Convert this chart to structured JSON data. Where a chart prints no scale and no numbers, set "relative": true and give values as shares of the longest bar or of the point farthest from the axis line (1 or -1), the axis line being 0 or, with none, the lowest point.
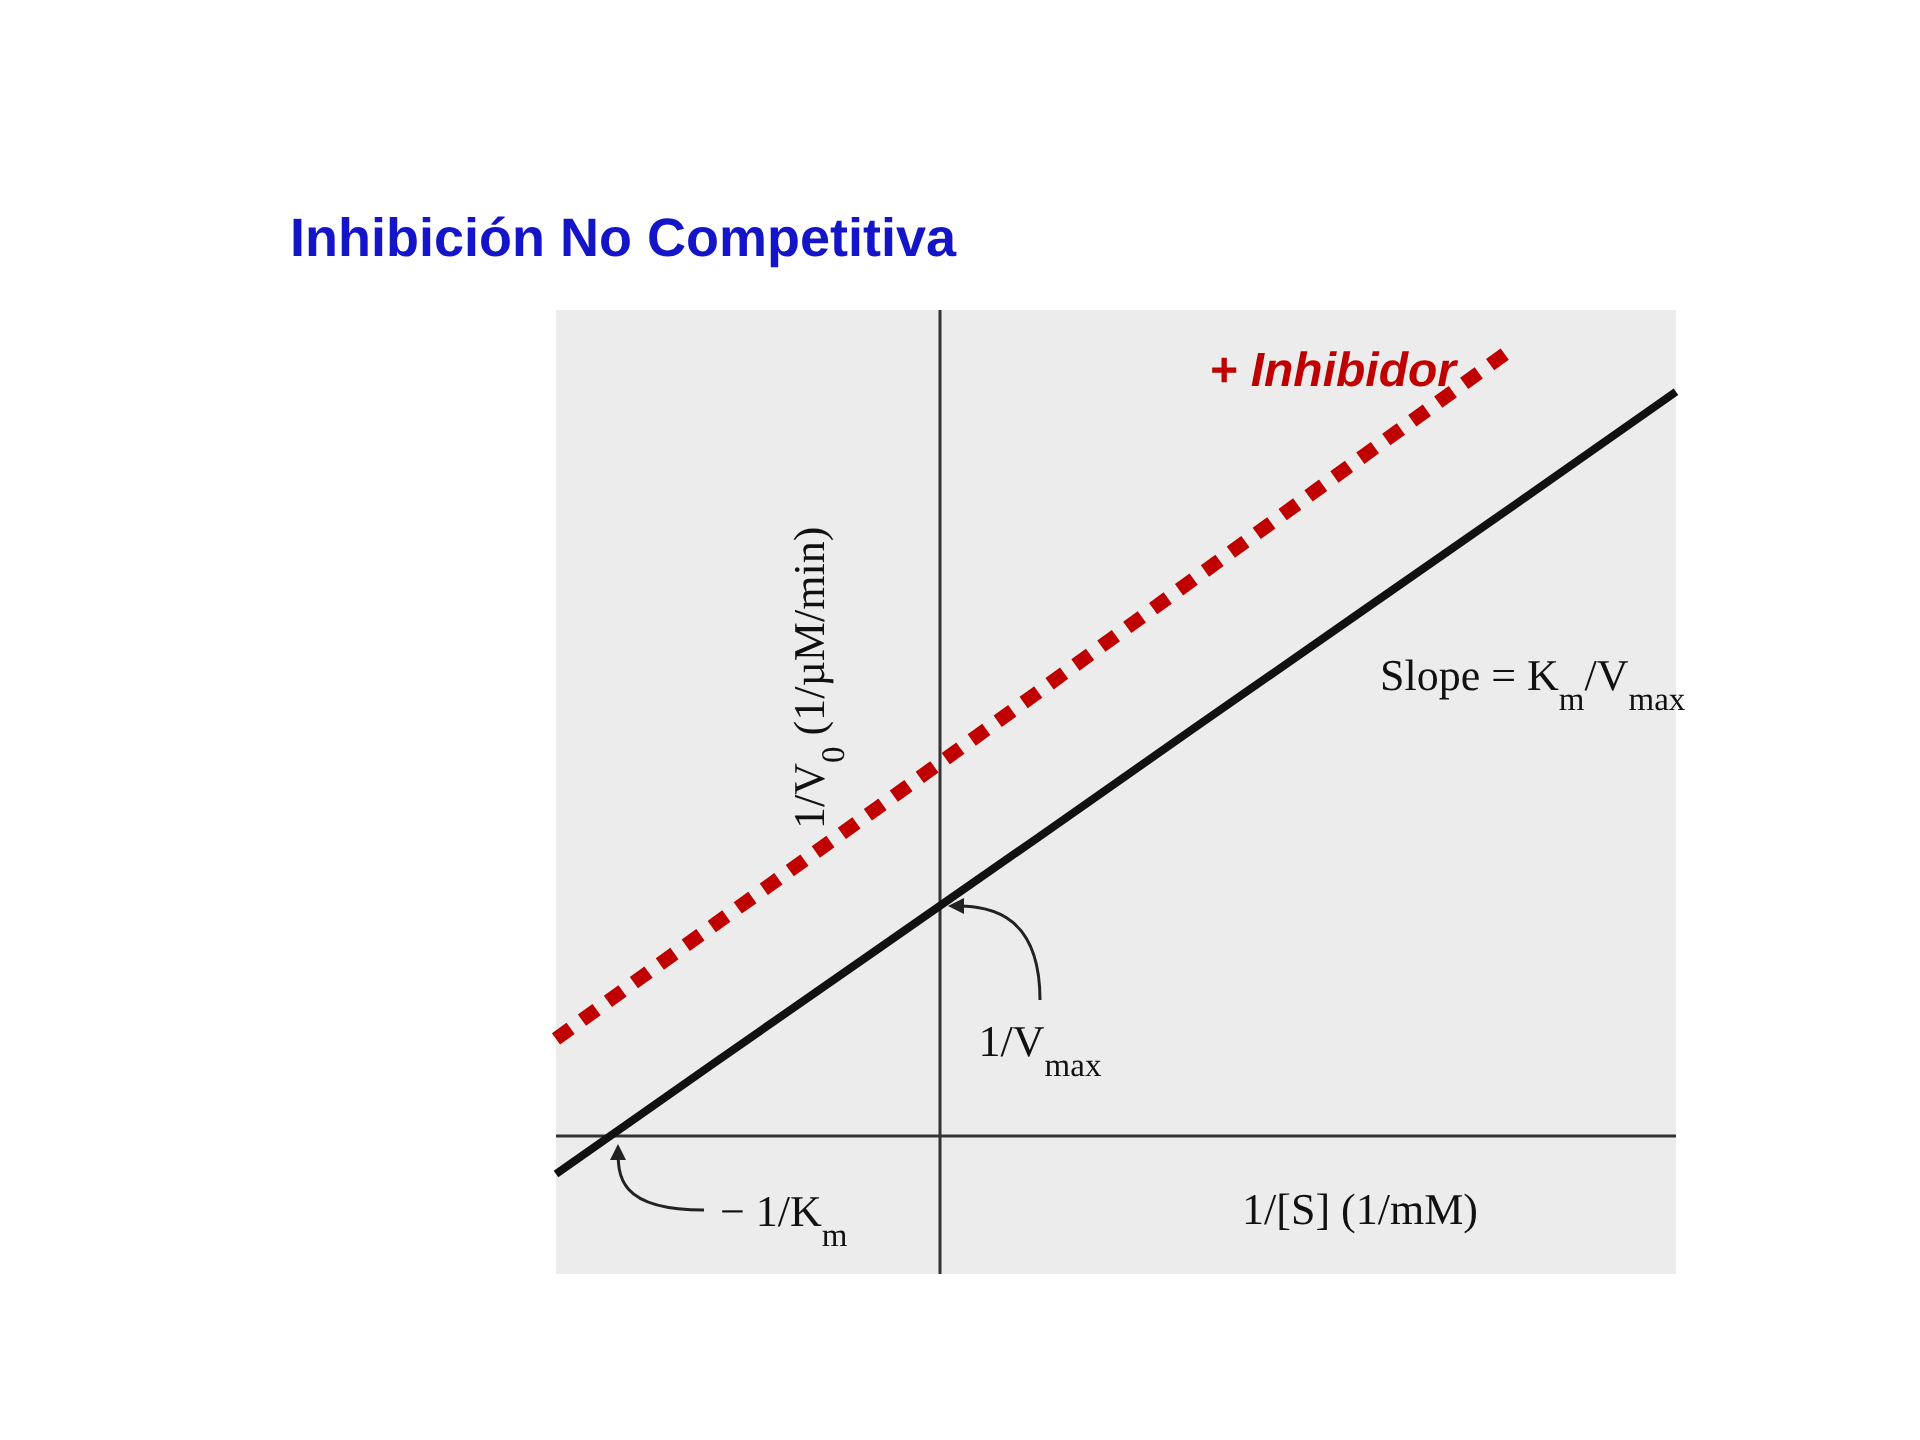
{
  "chart_data": {
    "type": "line",
    "title": "Inhibición  No Competitiva",
    "xlabel": "1/[S] (1/mM)",
    "ylabel": "1/V$_{0}$ (1/µM/min)",
    "relative": true,
    "categories": [
      null,
      null,
      null,
      null,
      null,
      null,
      null,
      null
    ],
    "series": [
      {
        "name": "+ Inhibidor",
        "color": "#c00000",
        "line_style": "dotted",
        "values": [
          0.123,
          0.269,
          0.414,
          0.56,
          0.707,
          0.854,
          1,
          null
        ]
      },
      {
        "color": "#111111",
        "line_style": "solid",
        "values": [
          -0.048,
          0.094,
          0.235,
          0.376,
          0.518,
          0.659,
          0.8,
          0.942
        ]
      }
    ],
    "annotations": [
      "Slope = K$_{m}$/V$_{max}$",
      "1/V$_{max}$",
      "− 1/K$_{m}$"
    ]
  }
}
